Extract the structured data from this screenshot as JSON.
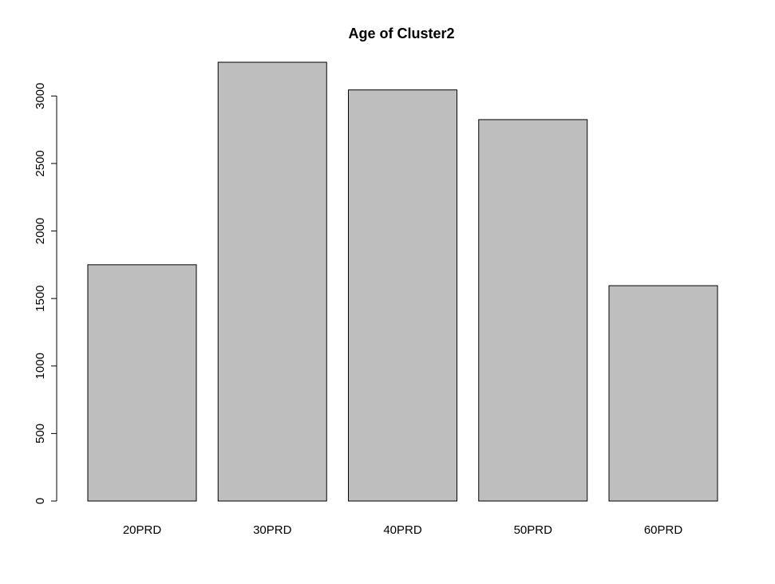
{
  "chart_data": {
    "type": "bar",
    "title": "Age of Cluster2",
    "xlabel": "",
    "ylabel": "",
    "categories": [
      "20PRD",
      "30PRD",
      "40PRD",
      "50PRD",
      "60PRD"
    ],
    "values": [
      1750,
      3250,
      3045,
      2825,
      1595
    ],
    "ylim": [
      0,
      3250
    ],
    "yticks": [
      0,
      500,
      1000,
      1500,
      2000,
      2500,
      3000
    ],
    "bar_color": "#bebebe",
    "grid": false,
    "legend": "none"
  }
}
